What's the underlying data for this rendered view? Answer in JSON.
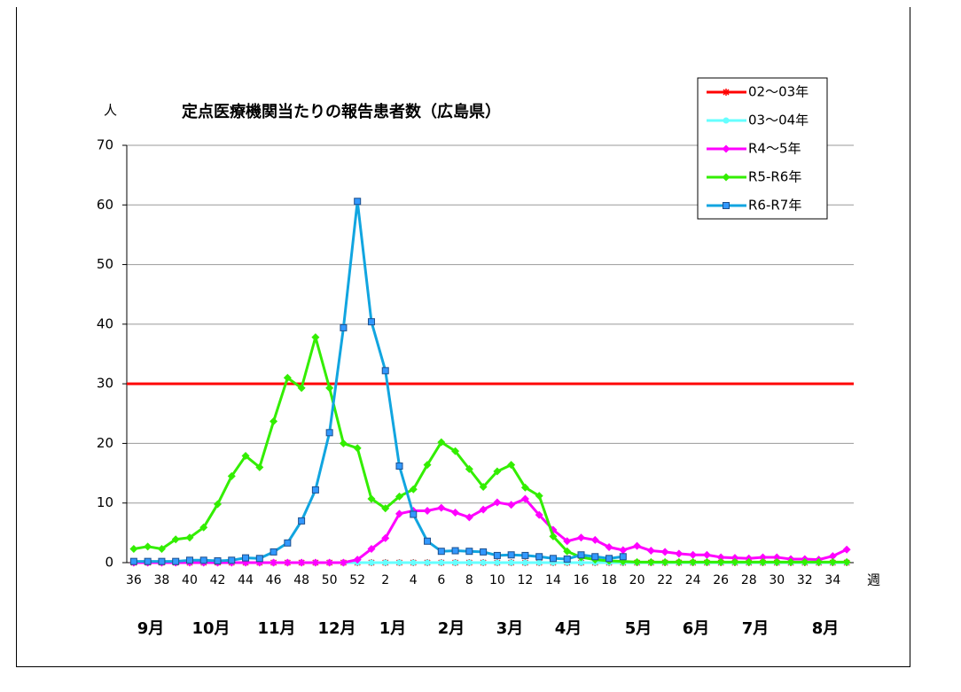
{
  "chart_data": {
    "type": "line",
    "title": "定点医療機関当たりの報告患者数（広島県）",
    "y_label": "人",
    "x_label": "週",
    "categories": [
      "36",
      null,
      "38",
      null,
      "40",
      null,
      "42",
      null,
      "44",
      null,
      "46",
      null,
      "48",
      null,
      "50",
      null,
      "52",
      null,
      "2",
      null,
      "4",
      null,
      "6",
      null,
      "8",
      null,
      "10",
      null,
      "12",
      null,
      "14",
      null,
      "16",
      null,
      "18",
      null,
      "20",
      null,
      "22",
      null,
      "24",
      null,
      "26",
      null,
      "28",
      null,
      "30",
      null,
      "32",
      null,
      "34",
      null
    ],
    "month_labels": [
      "9月",
      "10月",
      "11月",
      "12月",
      "1月",
      "2月",
      "3月",
      "4月",
      "5月",
      "6月",
      "7月",
      "8月"
    ],
    "ylim": [
      0,
      70
    ],
    "yticks": [
      0,
      10,
      20,
      30,
      40,
      50,
      60,
      70
    ],
    "grid": true,
    "reference_line": {
      "value": 30,
      "color": "#ff0000"
    },
    "series": [
      {
        "name": "02～03年",
        "color": "#ff0000",
        "marker": "star",
        "values": [
          0,
          0,
          0,
          0,
          0,
          0,
          0,
          0,
          0,
          0,
          0,
          0,
          0,
          0,
          0,
          0,
          0,
          0,
          0,
          0,
          0,
          0,
          0,
          0,
          0,
          0,
          0,
          0,
          0,
          0,
          0,
          0,
          0,
          0,
          0,
          0,
          0,
          0,
          0,
          0,
          0,
          0,
          0,
          0,
          0,
          0,
          0,
          0,
          0,
          0,
          0,
          0
        ]
      },
      {
        "name": "03～04年",
        "color": "#66ffff",
        "marker": "circle",
        "values": [
          0,
          0,
          0,
          0,
          0,
          0,
          0,
          0,
          0,
          0,
          0,
          0,
          0,
          0,
          0,
          0,
          0,
          0,
          0,
          0,
          0,
          0,
          0,
          0,
          0,
          0,
          0,
          0,
          0,
          0,
          0,
          0,
          0,
          0,
          0,
          0,
          0,
          0,
          0,
          0,
          0,
          0,
          0,
          0,
          0,
          0,
          0,
          0,
          0,
          0,
          0,
          0
        ]
      },
      {
        "name": "R4～5年",
        "color": "#ff00ff",
        "marker": "diamond",
        "values": [
          0,
          0,
          0,
          0,
          0,
          0,
          0,
          0,
          0,
          0,
          0,
          0,
          0,
          0,
          0,
          0,
          0.5,
          2.3,
          4.1,
          8.2,
          8.7,
          8.7,
          9.2,
          8.4,
          7.6,
          8.9,
          10.1,
          9.7,
          10.7,
          8.0,
          5.5,
          3.6,
          4.2,
          3.8,
          2.6,
          2.1,
          2.8,
          2.0,
          1.8,
          1.5,
          1.3,
          1.3,
          0.9,
          0.8,
          0.7,
          0.9,
          0.9,
          0.6,
          0.6,
          0.5,
          1.1,
          2.2
        ]
      },
      {
        "name": "R5-R6年",
        "color": "#33ee00",
        "marker": "diamond",
        "values": [
          2.3,
          2.7,
          2.3,
          3.9,
          4.2,
          5.9,
          9.8,
          14.5,
          17.9,
          16.0,
          23.7,
          31.0,
          29.3,
          37.8,
          29.3,
          20.0,
          19.2,
          10.7,
          9.1,
          11.1,
          12.3,
          16.4,
          20.2,
          18.7,
          15.7,
          12.7,
          15.3,
          16.4,
          12.6,
          11.2,
          4.4,
          1.9,
          0.9,
          0.5,
          0.3,
          0.2,
          0.1,
          0.1,
          0.1,
          0.1,
          0.1,
          0.1,
          0.1,
          0.1,
          0.1,
          0.1,
          0.1,
          0.1,
          0.1,
          0.1,
          0.1,
          0.1
        ]
      },
      {
        "name": "R6-R7年",
        "color": "#11a5e0",
        "marker": "square",
        "values": [
          0.2,
          0.2,
          0.2,
          0.2,
          0.4,
          0.4,
          0.3,
          0.4,
          0.8,
          0.7,
          1.8,
          3.3,
          7.0,
          12.2,
          21.8,
          39.4,
          60.6,
          40.4,
          32.2,
          16.2,
          8.1,
          3.6,
          1.9,
          2.0,
          1.9,
          1.8,
          1.2,
          1.3,
          1.2,
          1.0,
          0.7,
          0.6,
          1.3,
          1.0,
          0.7,
          1.0,
          null,
          null,
          null,
          null,
          null,
          null,
          null,
          null,
          null,
          null,
          null,
          null,
          null,
          null,
          null,
          null
        ]
      }
    ]
  }
}
